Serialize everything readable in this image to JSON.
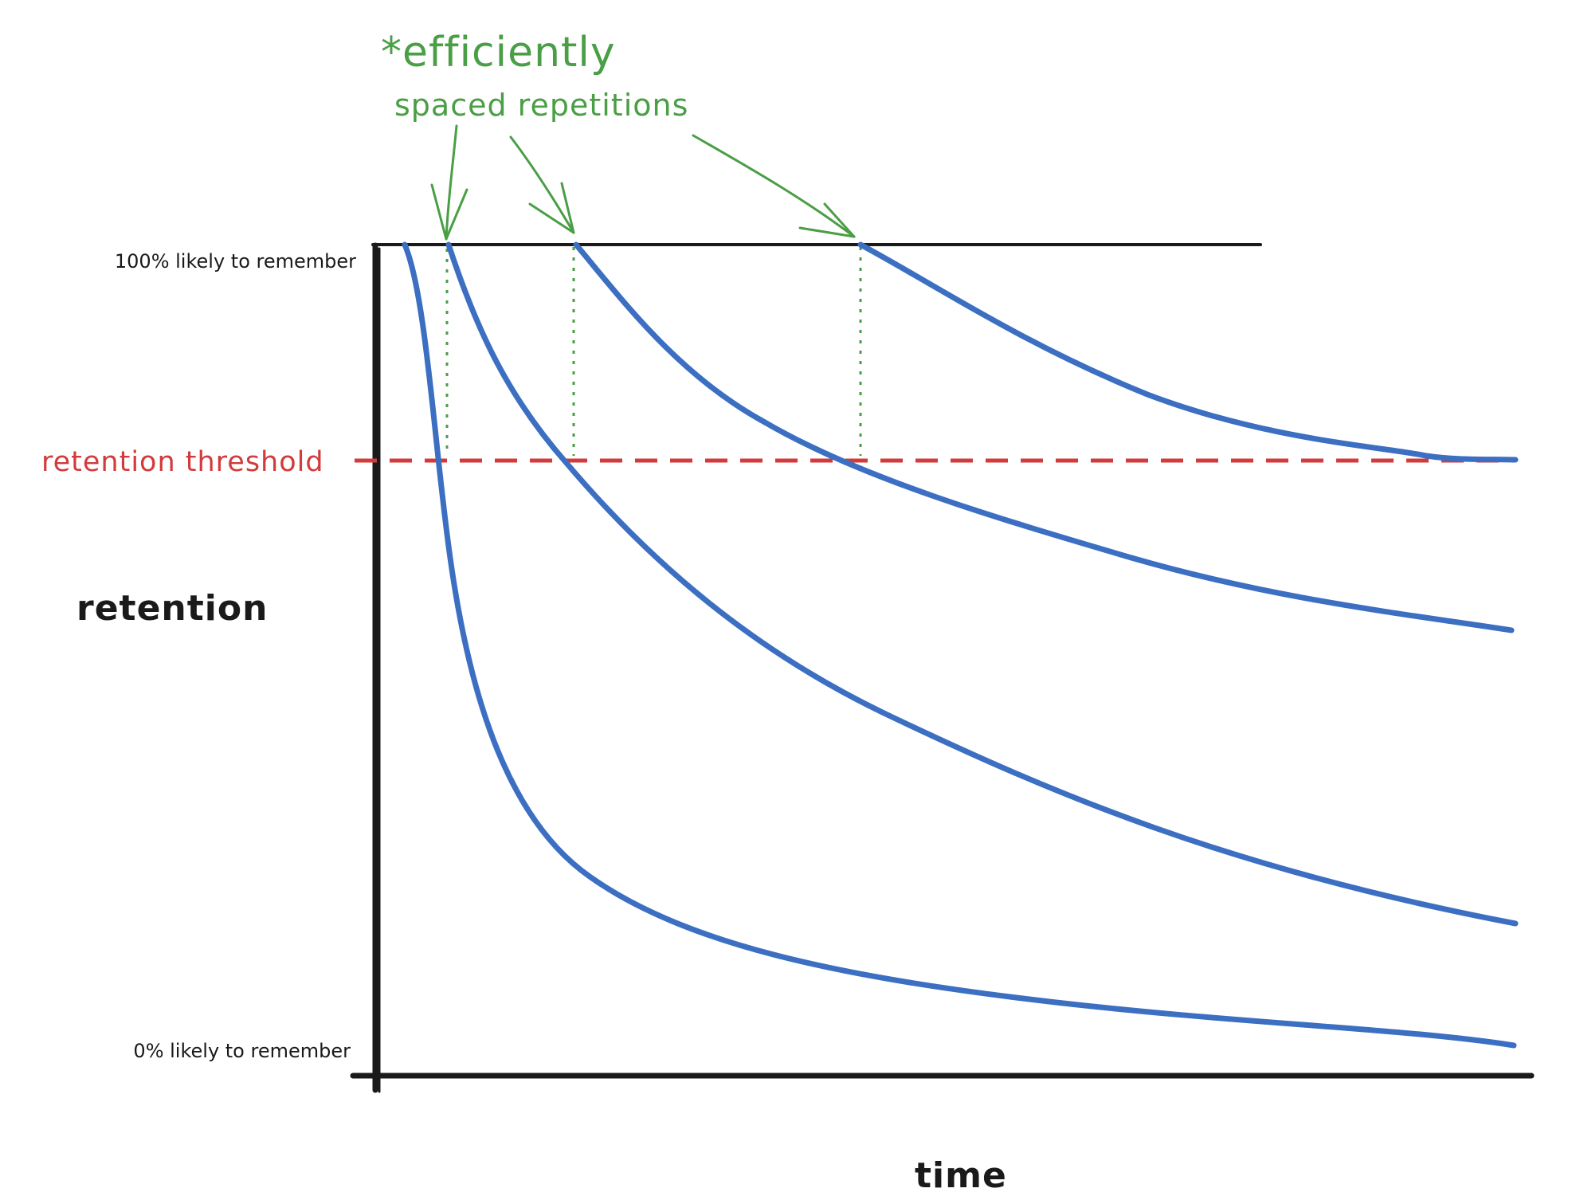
{
  "labels": {
    "top_level": "100% likely to remember",
    "bottom_level": "0% likely to remember",
    "y_axis": "retention",
    "x_axis": "time",
    "threshold": "retention threshold",
    "annotation_line1": "*efficiently",
    "annotation_line2": "spaced repetitions"
  },
  "colors": {
    "axes": "#1a1a1a",
    "curves": "#3c6fc2",
    "threshold": "#d23b3b",
    "annotation": "#4a9e45"
  }
}
